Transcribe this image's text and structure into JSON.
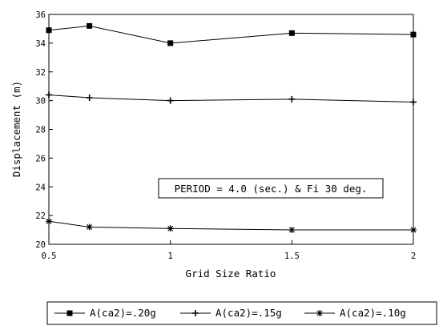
{
  "chart_data": {
    "type": "line",
    "title": "",
    "xlabel": "Grid Size Ratio",
    "ylabel": "Displacement (m)",
    "xlim": [
      0.5,
      2
    ],
    "ylim": [
      20,
      36
    ],
    "x_ticks": [
      "0.5",
      "1",
      "1.5",
      "2"
    ],
    "y_ticks": [
      "20",
      "22",
      "24",
      "26",
      "28",
      "30",
      "32",
      "34",
      "36"
    ],
    "grid": false,
    "legend_position": "bottom",
    "annotation": "PERIOD = 4.0 (sec.) & Fi 30 deg.",
    "series": [
      {
        "name": "A(ca2)=.20g",
        "marker": "square",
        "x": [
          0.5,
          0.667,
          1,
          1.5,
          2
        ],
        "y": [
          34.9,
          35.2,
          34.0,
          34.7,
          34.6
        ]
      },
      {
        "name": "A(ca2)=.15g",
        "marker": "plus",
        "x": [
          0.5,
          0.667,
          1,
          1.5,
          2
        ],
        "y": [
          30.4,
          30.2,
          30.0,
          30.1,
          29.9
        ]
      },
      {
        "name": "A(ca2)=.10g",
        "marker": "star",
        "x": [
          0.5,
          0.667,
          1,
          1.5,
          2
        ],
        "y": [
          21.6,
          21.2,
          21.1,
          21.0,
          21.0
        ]
      }
    ]
  }
}
